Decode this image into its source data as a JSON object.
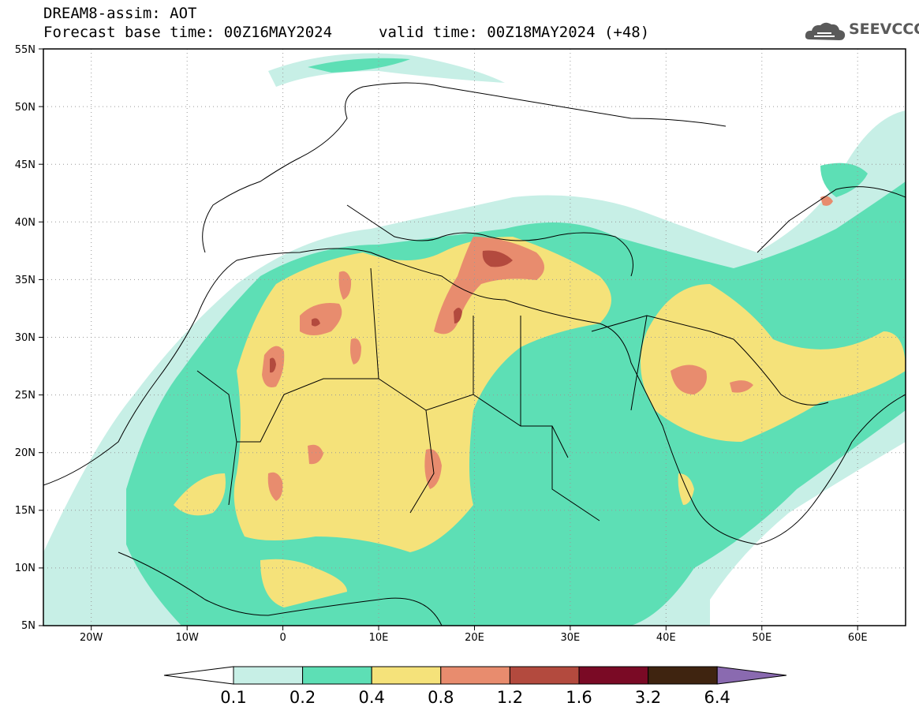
{
  "header": {
    "title": "DREAM8-assim: AOT",
    "base_time": "Forecast base time: 00Z16MAY2024",
    "valid_time": "valid time: 00Z18MAY2024 (+48)",
    "logo_text": "SEEVCCC"
  },
  "axes": {
    "lat_labels": [
      "55N",
      "50N",
      "45N",
      "40N",
      "35N",
      "30N",
      "25N",
      "20N",
      "15N",
      "10N",
      "5N"
    ],
    "lon_labels": [
      "20W",
      "10W",
      "0",
      "10E",
      "20E",
      "30E",
      "40E",
      "50E",
      "60E"
    ],
    "lat_range": [
      5,
      55
    ],
    "lon_range": [
      -25,
      65
    ],
    "grid": "dotted"
  },
  "colorbar": {
    "labels": [
      "0.1",
      "0.2",
      "0.4",
      "0.8",
      "1.2",
      "1.6",
      "3.2",
      "6.4"
    ],
    "colors": [
      "#ffffff",
      "#c7efe6",
      "#5ddfb5",
      "#f5e27a",
      "#e88c6e",
      "#b34a3e",
      "#7a0a25",
      "#3f2410",
      "#8a6ab0"
    ]
  }
}
